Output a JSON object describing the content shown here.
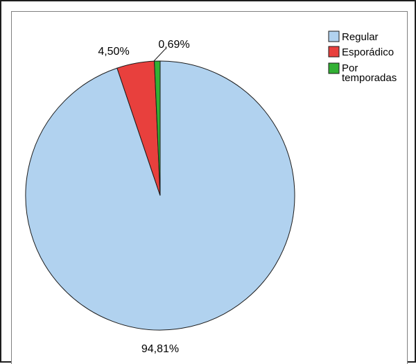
{
  "chart_data": {
    "type": "pie",
    "categories": [
      "Regular",
      "Esporádico",
      "Por temporadas"
    ],
    "values": [
      94.81,
      4.5,
      0.69
    ],
    "value_labels": [
      "94,81%",
      "4,50%",
      "0,69%"
    ],
    "colors": [
      "#b1d2ef",
      "#e8403d",
      "#32b034"
    ],
    "legend": {
      "placement": "top-right",
      "items": [
        {
          "lines": [
            "Regular"
          ]
        },
        {
          "lines": [
            "Esporádico"
          ]
        },
        {
          "lines": [
            "Por",
            "temporadas"
          ]
        }
      ]
    }
  }
}
